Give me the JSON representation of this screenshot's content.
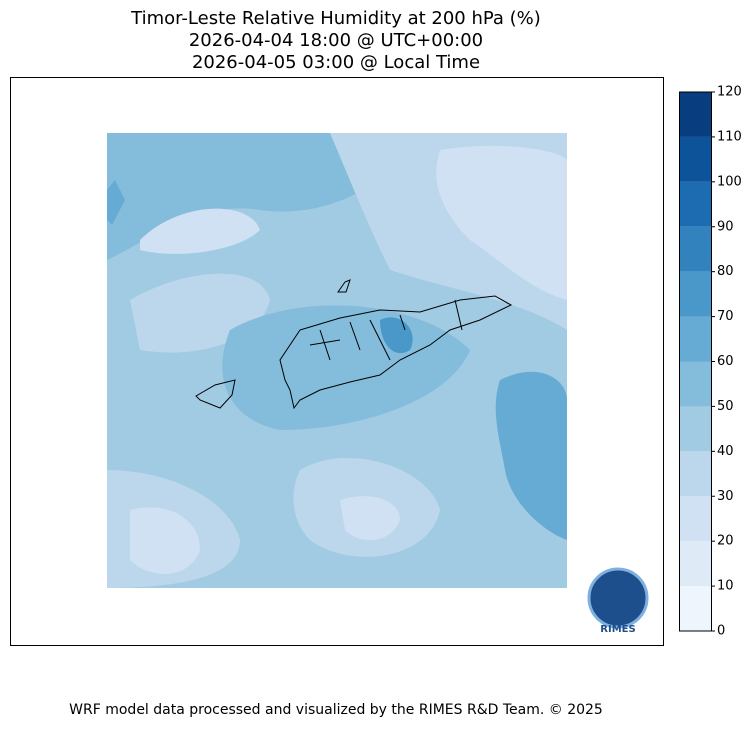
{
  "title": [
    "Timor-Leste Relative Humidity at 200 hPa (%)",
    "2026-04-04 18:00 @ UTC+00:00",
    "2026-04-05 03:00 @ Local Time"
  ],
  "colorbar": {
    "levels": [
      0,
      10,
      20,
      30,
      40,
      50,
      60,
      70,
      80,
      90,
      100,
      110,
      120
    ],
    "colors": [
      "#eef5fc",
      "#deebf7",
      "#cfe1f2",
      "#bcd7eb",
      "#a0cbe2",
      "#84bcdb",
      "#66abd4",
      "#4a98c9",
      "#3282be",
      "#1d6cb1",
      "#0d539a",
      "#083d80"
    ]
  },
  "logo_text": "RIMES",
  "footer": "WRF model data processed and visualized by the RIMES R&D Team. © 2025"
}
